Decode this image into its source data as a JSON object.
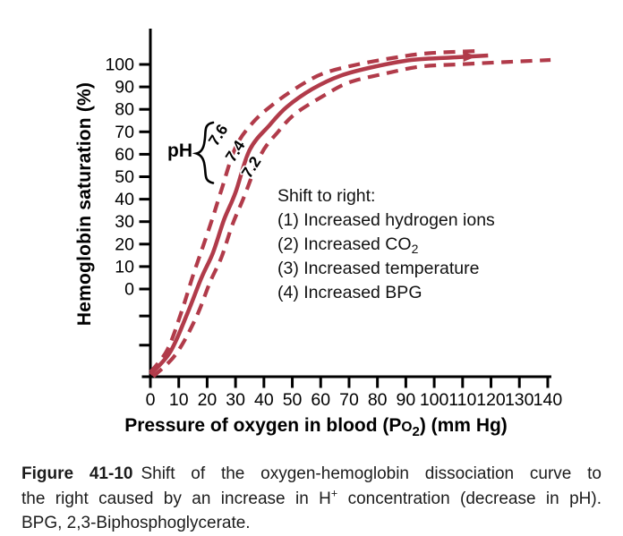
{
  "chart_data": {
    "type": "line",
    "title": "",
    "xlabel_parts": {
      "pre": "Pressure of oxygen in blood (P",
      "smallcap_o": "o",
      "sub": "2",
      "post": ") (mm Hg)"
    },
    "ylabel": "Hemoglobin saturation (%)",
    "x_ticks": [
      0,
      10,
      20,
      30,
      40,
      50,
      60,
      70,
      80,
      90,
      100,
      110,
      120,
      130,
      140
    ],
    "y_ticks": [
      100,
      90,
      80,
      70,
      60,
      50,
      40,
      30,
      20,
      10,
      0
    ],
    "y_unlabeled_tick_values": [
      -12,
      -25
    ],
    "xlim": [
      0,
      140
    ],
    "ylim_labeled": [
      0,
      100
    ],
    "grid": false,
    "legend": "none",
    "curve_color": "#b13b4a",
    "axis_color": "#000000",
    "note": "All three curves rise from the axis corner below the 0% tick, as drawn in the source figure; the solid pH 7.4 curve carries a right-pointing arrowhead near its end.",
    "series": [
      {
        "name": "pH 7.6",
        "style": "dashed",
        "arrow_end": false,
        "points": [
          [
            0,
            -37
          ],
          [
            6,
            -27
          ],
          [
            11,
            -10
          ],
          [
            15,
            6
          ],
          [
            18,
            17
          ],
          [
            22,
            32
          ],
          [
            25,
            44
          ],
          [
            30,
            63
          ],
          [
            36,
            74
          ],
          [
            43,
            82
          ],
          [
            52,
            90
          ],
          [
            61,
            96
          ],
          [
            73,
            100
          ],
          [
            86,
            103
          ],
          [
            98,
            105
          ],
          [
            116,
            106
          ]
        ]
      },
      {
        "name": "pH 7.4",
        "style": "solid",
        "arrow_end": true,
        "points": [
          [
            0,
            -38
          ],
          [
            7,
            -28
          ],
          [
            13,
            -11
          ],
          [
            18,
            5
          ],
          [
            22,
            16
          ],
          [
            26,
            31
          ],
          [
            30,
            43
          ],
          [
            35,
            62
          ],
          [
            42,
            73
          ],
          [
            48,
            81
          ],
          [
            57,
            89
          ],
          [
            67,
            95
          ],
          [
            79,
            99
          ],
          [
            92,
            102
          ],
          [
            105,
            103
          ],
          [
            119,
            104
          ]
        ]
      },
      {
        "name": "pH 7.2",
        "style": "dashed",
        "arrow_end": false,
        "points": [
          [
            1,
            -39
          ],
          [
            9,
            -29
          ],
          [
            16,
            -13
          ],
          [
            21,
            3
          ],
          [
            25,
            14
          ],
          [
            29,
            29
          ],
          [
            33,
            41
          ],
          [
            39,
            60
          ],
          [
            45,
            70
          ],
          [
            51,
            78
          ],
          [
            61,
            86
          ],
          [
            70,
            92
          ],
          [
            83,
            96
          ],
          [
            95,
            99
          ],
          [
            108,
            100
          ],
          [
            124,
            101
          ],
          [
            141,
            102
          ]
        ]
      }
    ]
  },
  "ph_group": {
    "label": "pH",
    "values": [
      "7.6",
      "7.4",
      "7.2"
    ]
  },
  "annotation": {
    "title": "Shift to right:",
    "items": [
      {
        "text": "(1) Increased hydrogen ions",
        "sub": ""
      },
      {
        "text": "(2) Increased CO",
        "sub": "2"
      },
      {
        "text": "(3) Increased temperature",
        "sub": ""
      },
      {
        "text": "(4) Increased BPG",
        "sub": ""
      }
    ]
  },
  "caption": {
    "label": "Figure 41-10",
    "line1_rest": "Shift of the oxygen-hemoglobin dissociation curve to",
    "line2_pre": "the right caused by an increase in H",
    "line2_sup": "+",
    "line2_post": " concentration (decrease in pH).",
    "line3": "BPG, 2,3-Biphosphoglycerate."
  }
}
